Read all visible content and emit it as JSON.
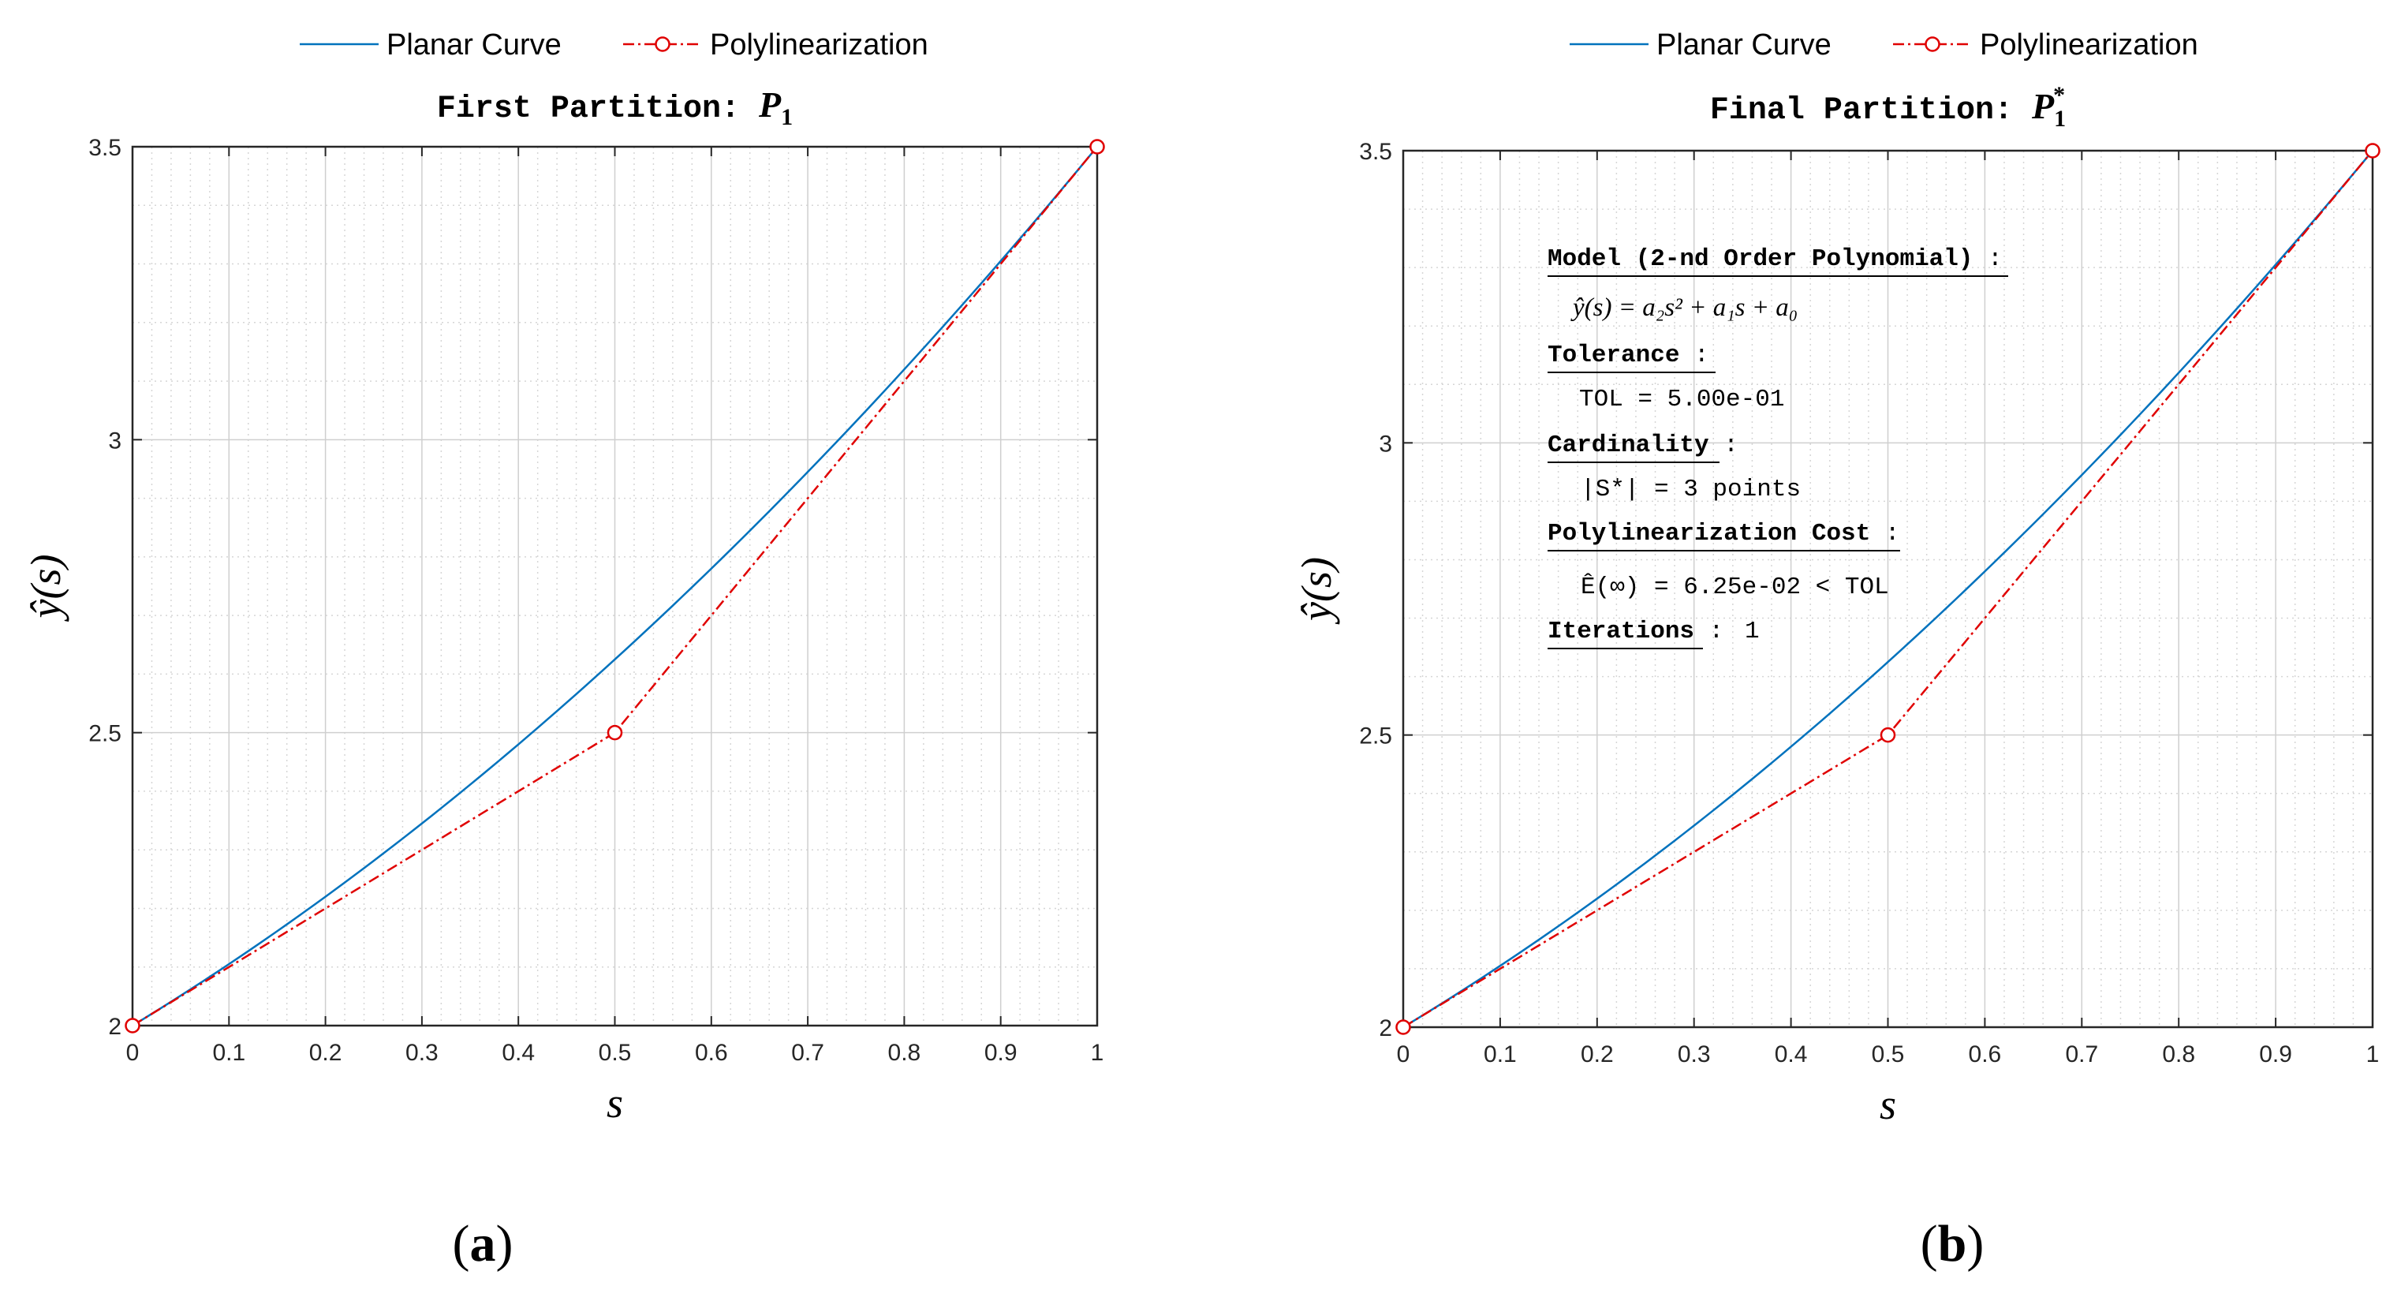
{
  "chart_data": [
    {
      "type": "line",
      "panel_label": "a",
      "title": "First Partition: ",
      "title_math": "P",
      "title_sub": "1",
      "title_sup": "",
      "xlabel": "s",
      "ylabel": "ŷ(s)",
      "xlim": [
        0,
        1
      ],
      "ylim": [
        2,
        3.5
      ],
      "xticks": [
        "0",
        "0.1",
        "0.2",
        "0.3",
        "0.4",
        "0.5",
        "0.6",
        "0.7",
        "0.8",
        "0.9",
        "1"
      ],
      "yticks": [
        "2",
        "2.5",
        "3",
        "3.5"
      ],
      "grid": true,
      "minor_grid": true,
      "legend": {
        "placement": "top",
        "entries": [
          "Planar Curve",
          "Polylinearization"
        ]
      },
      "series": [
        {
          "name": "Planar Curve",
          "kind": "curve",
          "color": "#0072BD",
          "x": [
            0,
            0.1,
            0.2,
            0.3,
            0.4,
            0.5,
            0.6,
            0.7,
            0.8,
            0.9,
            1
          ],
          "y": [
            2,
            2.06,
            2.14,
            2.24,
            2.36,
            2.5,
            2.66,
            2.84,
            3.04,
            3.26,
            3.5
          ]
        },
        {
          "name": "Polylinearization",
          "kind": "polyline",
          "color": "#E00000",
          "x": [
            0,
            0.5,
            1
          ],
          "y": [
            2,
            2.5,
            3.5
          ]
        }
      ],
      "annotations": []
    },
    {
      "type": "line",
      "panel_label": "b",
      "title": "Final Partition: ",
      "title_math": "P",
      "title_sub": "1",
      "title_sup": "*",
      "xlabel": "s",
      "ylabel": "ŷ(s)",
      "xlim": [
        0,
        1
      ],
      "ylim": [
        2,
        3.5
      ],
      "xticks": [
        "0",
        "0.1",
        "0.2",
        "0.3",
        "0.4",
        "0.5",
        "0.6",
        "0.7",
        "0.8",
        "0.9",
        "1"
      ],
      "yticks": [
        "2",
        "2.5",
        "3",
        "3.5"
      ],
      "grid": true,
      "minor_grid": true,
      "legend": {
        "placement": "top",
        "entries": [
          "Planar Curve",
          "Polylinearization"
        ]
      },
      "series": [
        {
          "name": "Planar Curve",
          "kind": "curve",
          "color": "#0072BD",
          "x": [
            0,
            0.1,
            0.2,
            0.3,
            0.4,
            0.5,
            0.6,
            0.7,
            0.8,
            0.9,
            1
          ],
          "y": [
            2,
            2.06,
            2.14,
            2.24,
            2.36,
            2.5,
            2.66,
            2.84,
            3.04,
            3.26,
            3.5
          ]
        },
        {
          "name": "Polylinearization",
          "kind": "polyline",
          "color": "#E00000",
          "x": [
            0,
            0.5,
            1
          ],
          "y": [
            2,
            2.5,
            3.5
          ]
        }
      ],
      "annotations": {
        "model_heading": "Model (2-nd Order Polynomial)",
        "model_formula": "ŷ(s) = a₂s² + a₁s + a₀",
        "tolerance_heading": "Tolerance",
        "tolerance_value": "TOL = 5.00e-01",
        "cardinality_heading": "Cardinality",
        "cardinality_value": "|S*| = 3 points",
        "cost_heading": "Polylinearization Cost",
        "cost_value": "Ê(∞) = 6.25e-02 < TOL",
        "iterations_heading": "Iterations",
        "iterations_value": "1",
        "separator": " :"
      }
    }
  ]
}
